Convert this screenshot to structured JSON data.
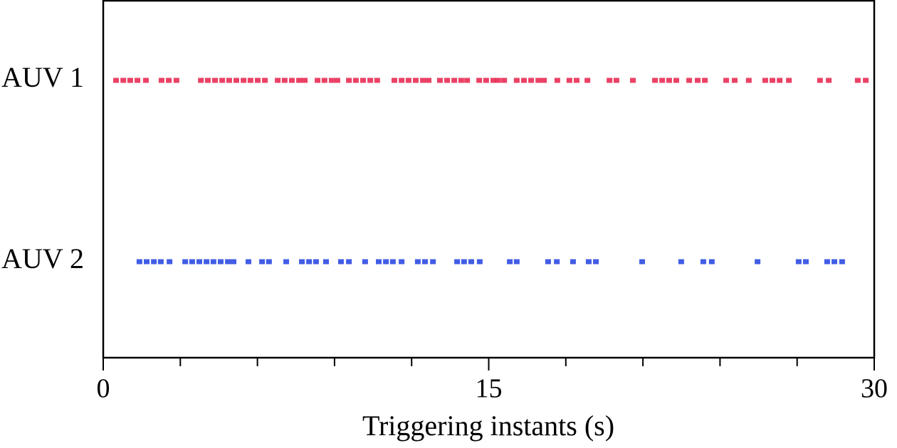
{
  "chart_data": {
    "type": "event",
    "xlabel": "Triggering instants (s)",
    "xlim": [
      0,
      30
    ],
    "xticks": [
      0,
      15,
      30
    ],
    "xminor_ticks": [
      3,
      6,
      9,
      12,
      18,
      21,
      24,
      27
    ],
    "series": [
      {
        "name": "AUV 1",
        "color": "#e8204a",
        "values": [
          0.5,
          0.78,
          1.05,
          1.33,
          1.66,
          2.27,
          2.55,
          2.85,
          3.8,
          4.07,
          4.35,
          4.63,
          4.9,
          5.18,
          5.46,
          5.73,
          6.01,
          6.29,
          6.79,
          7.06,
          7.34,
          7.62,
          7.84,
          8.34,
          8.61,
          8.89,
          9.11,
          9.56,
          9.83,
          10.11,
          10.39,
          10.66,
          11.33,
          11.61,
          11.88,
          12.16,
          12.44,
          12.66,
          13.1,
          13.38,
          13.66,
          13.93,
          14.16,
          14.63,
          14.9,
          15.18,
          15.37,
          15.6,
          16.09,
          16.37,
          16.65,
          16.93,
          17.15,
          17.67,
          18.14,
          18.42,
          18.84,
          19.7,
          19.97,
          20.61,
          21.47,
          21.75,
          22.02,
          22.3,
          22.8,
          23.13,
          23.41,
          24.24,
          24.57,
          25.12,
          25.76,
          26.04,
          26.32,
          26.68,
          27.89,
          28.23,
          29.36,
          29.67
        ]
      },
      {
        "name": "AUV 2",
        "color": "#2040e0",
        "values": [
          1.41,
          1.69,
          1.97,
          2.24,
          2.58,
          3.19,
          3.46,
          3.74,
          4.02,
          4.29,
          4.57,
          4.85,
          5.07,
          5.65,
          6.18,
          6.45,
          7.12,
          7.73,
          8.01,
          8.28,
          8.67,
          9.25,
          9.56,
          10.19,
          10.72,
          11.0,
          11.27,
          11.61,
          12.24,
          12.52,
          12.83,
          13.77,
          14.04,
          14.32,
          14.65,
          15.82,
          16.09,
          17.31,
          17.65,
          18.28,
          18.89,
          19.17,
          20.97,
          22.49,
          23.35,
          23.68,
          25.46,
          27.06,
          27.34,
          28.17,
          28.45,
          28.75
        ]
      }
    ]
  }
}
